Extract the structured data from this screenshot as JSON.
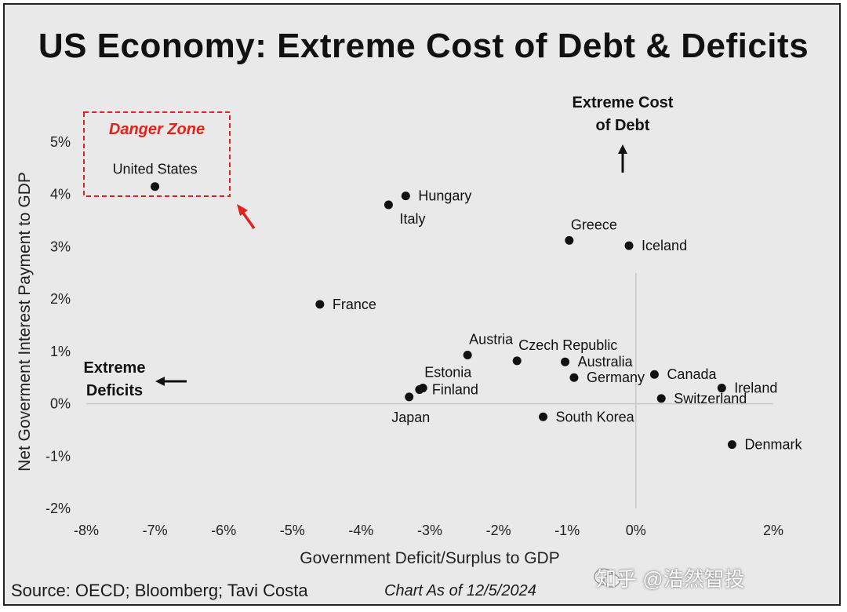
{
  "title": "US Economy: Extreme Cost of Debt & Deficits",
  "source": "Source: OECD; Bloomberg; Tavi Costa",
  "as_of": "Chart As of 12/5/2024",
  "watermark": "知乎 @浩然智投",
  "colors": {
    "danger": "#e0231b",
    "point": "#111111",
    "background": "#e9e9e9"
  },
  "chart_data": {
    "type": "scatter",
    "xlabel": "Government Deficit/Surplus to GDP",
    "ylabel": "Net Goverment Interest Payment to GDP",
    "xlim": [
      -8,
      2
    ],
    "ylim": [
      -2,
      5
    ],
    "xticks": [
      -8,
      -7,
      -6,
      -5,
      -4,
      -3,
      -2,
      -1,
      0,
      2
    ],
    "xtick_labels": [
      "-8%",
      "-7%",
      "-6%",
      "-5%",
      "-4%",
      "-3%",
      "-2%",
      "-1%",
      "0%",
      "2%"
    ],
    "yticks": [
      5,
      4,
      3,
      2,
      1,
      0,
      -1,
      -2
    ],
    "ytick_labels": [
      "5%",
      "4%",
      "3%",
      "2%",
      "1%",
      "0%",
      "-1%",
      "-2%"
    ],
    "points": [
      {
        "name": "United States",
        "x": -7.0,
        "y": 4.15,
        "label_pos": "above"
      },
      {
        "name": "Hungary",
        "x": -3.35,
        "y": 3.97,
        "label_pos": "right"
      },
      {
        "name": "Italy",
        "x": -3.6,
        "y": 3.8,
        "label_pos": "below-right"
      },
      {
        "name": "Greece",
        "x": -0.97,
        "y": 3.12,
        "label_pos": "above-right"
      },
      {
        "name": "Iceland",
        "x": -0.1,
        "y": 3.02,
        "label_pos": "right"
      },
      {
        "name": "France",
        "x": -4.6,
        "y": 1.9,
        "label_pos": "right"
      },
      {
        "name": "Austria",
        "x": -2.45,
        "y": 0.93,
        "label_pos": "above-right"
      },
      {
        "name": "Czech Republic",
        "x": -1.73,
        "y": 0.82,
        "label_pos": "above-right"
      },
      {
        "name": "Australia",
        "x": -1.03,
        "y": 0.8,
        "label_pos": "right"
      },
      {
        "name": "Estonia",
        "x": -3.1,
        "y": 0.3,
        "label_pos": "above-right"
      },
      {
        "name": "Finland",
        "x": -3.15,
        "y": 0.27,
        "label_pos": "right"
      },
      {
        "name": "Japan",
        "x": -3.3,
        "y": 0.13,
        "label_pos": "below"
      },
      {
        "name": "Germany",
        "x": -0.9,
        "y": 0.5,
        "label_pos": "right"
      },
      {
        "name": "Canada",
        "x": 0.27,
        "y": 0.56,
        "label_pos": "right"
      },
      {
        "name": "Ireland",
        "x": 1.25,
        "y": 0.3,
        "label_pos": "right"
      },
      {
        "name": "Switzerland",
        "x": 0.37,
        "y": 0.1,
        "label_pos": "right"
      },
      {
        "name": "South Korea",
        "x": -1.35,
        "y": -0.25,
        "label_pos": "right"
      },
      {
        "name": "Denmark",
        "x": 1.4,
        "y": -0.78,
        "label_pos": "right"
      }
    ],
    "annotations": {
      "danger_zone": "Danger Zone",
      "extreme_deficits_line1": "Extreme",
      "extreme_deficits_line2": "Deficits",
      "extreme_cost_line1": "Extreme Cost",
      "extreme_cost_line2": "of Debt"
    }
  }
}
